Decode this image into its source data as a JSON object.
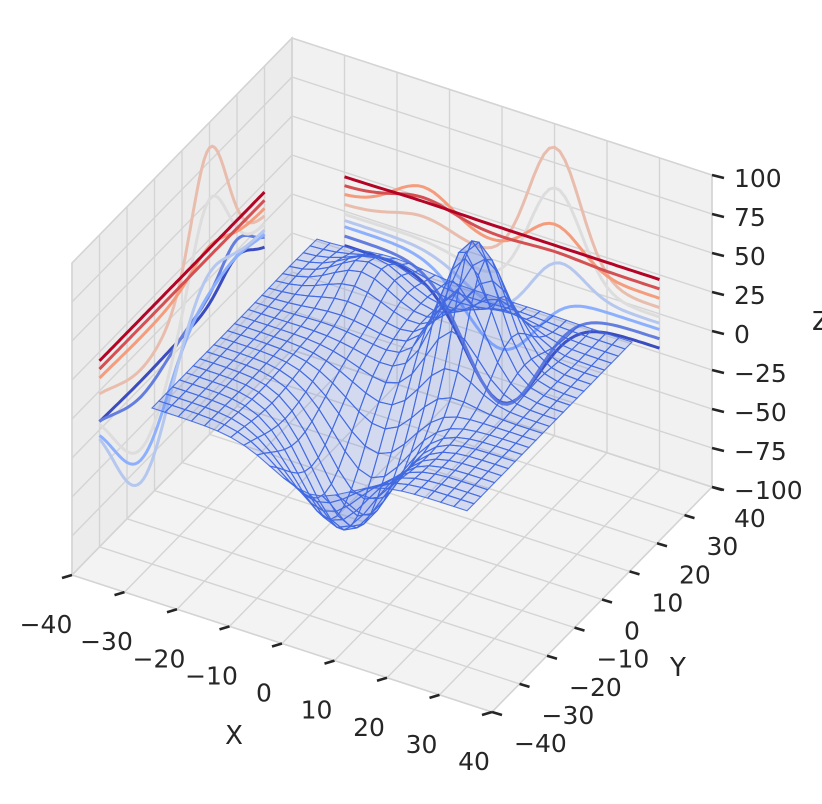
{
  "chart_data": {
    "type": "surface3d",
    "title": "",
    "axes": {
      "x": {
        "label": "X",
        "range": [
          -40,
          40
        ],
        "ticks": [
          "−40",
          "−30",
          "−20",
          "−10",
          "0",
          "10",
          "20",
          "30",
          "40"
        ]
      },
      "y": {
        "label": "Y",
        "range": [
          -40,
          40
        ],
        "ticks": [
          "−40",
          "−30",
          "−20",
          "−10",
          "0",
          "10",
          "20",
          "30",
          "40"
        ]
      },
      "z": {
        "label": "Z",
        "range": [
          -100,
          100
        ],
        "ticks": [
          "−100",
          "−75",
          "−50",
          "−25",
          "0",
          "25",
          "50",
          "75",
          "100"
        ]
      }
    },
    "grid": true,
    "surface": {
      "style": "wireframe with translucent fill",
      "x_range": [
        -30,
        30
      ],
      "y_range": [
        -30,
        30
      ],
      "peaks": [
        {
          "x": 10,
          "y": 10,
          "z": 80
        },
        {
          "x": 0,
          "y": -15,
          "z": -70
        }
      ],
      "color": "#4169e1"
    },
    "projections": {
      "x_wall_contours": {
        "colormap": "coolwarm",
        "levels": [
          -40,
          -25,
          -10,
          0,
          10,
          25,
          40,
          55,
          70
        ]
      },
      "y_wall_contours": {
        "colormap": "coolwarm",
        "levels": [
          -40,
          -25,
          -10,
          0,
          10,
          25,
          40,
          55,
          70
        ]
      }
    }
  }
}
